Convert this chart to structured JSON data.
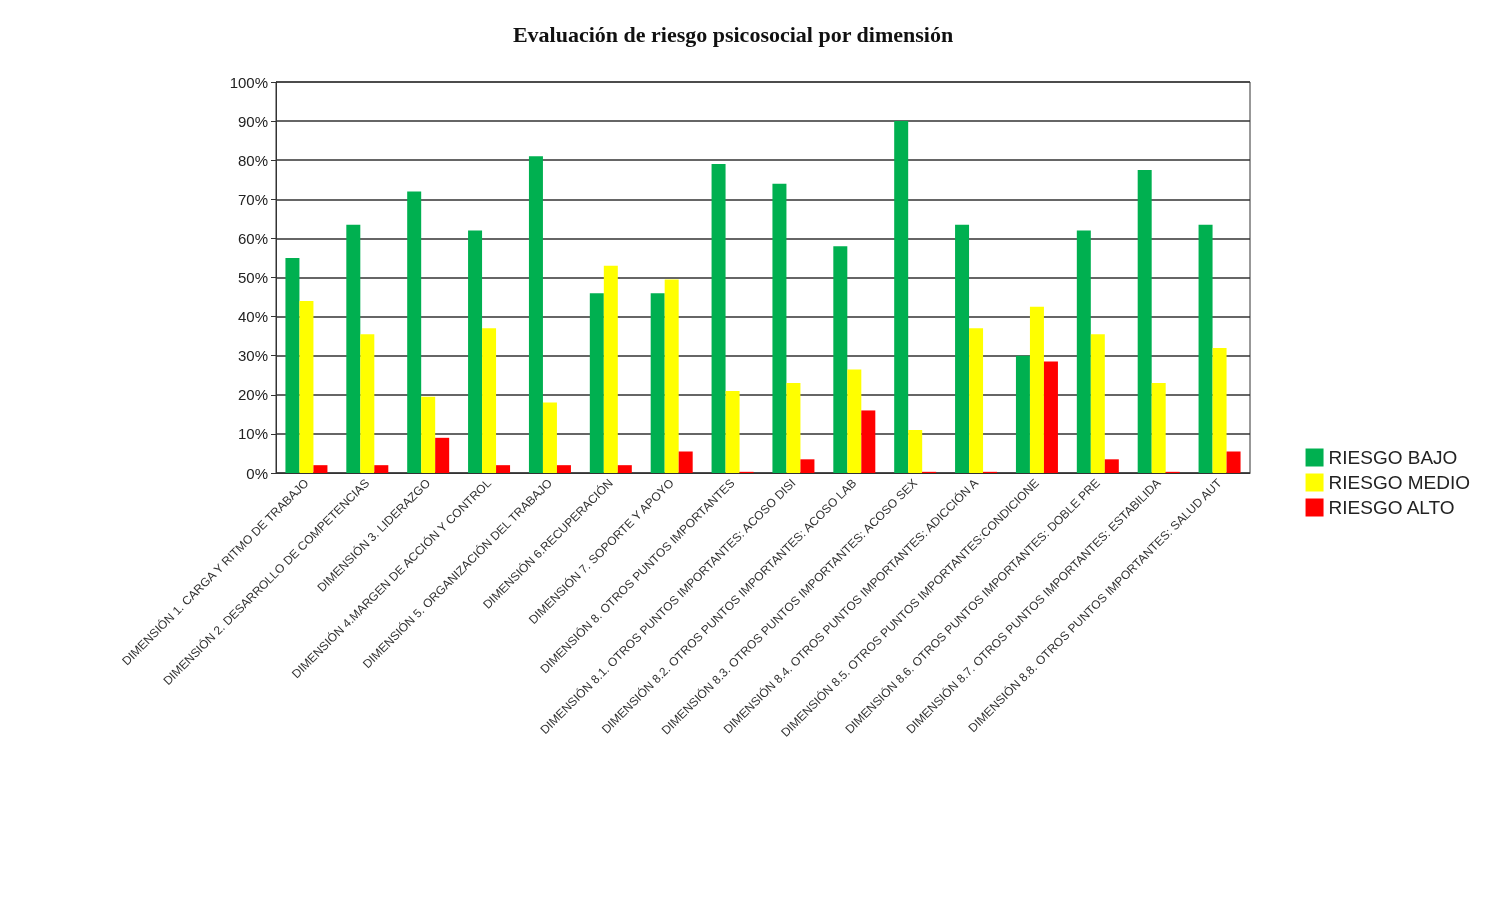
{
  "chart_data": {
    "type": "bar",
    "title": "Evaluación de riesgo psicosocial por dimensión",
    "categories": [
      "DIMENSIÓN 1. CARGA Y RITMO DE TRABAJO",
      "DIMENSIÓN 2. DESARROLLO DE COMPETENCIAS",
      "DIMENSIÓN 3. LIDERAZGO",
      "DIMENSIÓN 4.MARGEN DE ACCIÓN Y CONTROL",
      "DIMENSIÓN 5. ORGANIZACIÓN DEL TRABAJO",
      "DIMENSIÓN 6.RECUPERACIÓN",
      "DIMENSIÓN 7. SOPORTE Y APOYO",
      "DIMENSIÓN 8. OTROS PUNTOS IMPORTANTES",
      "DIMENSIÓN 8.1. OTROS PUNTOS IMPORTANTES: ACOSO DISI",
      "DIMENSIÓN 8.2. OTROS PUNTOS IMPORTANTES: ACOSO LAB",
      "DIMENSIÓN 8.3. OTROS PUNTOS IMPORTANTES: ACOSO SEX",
      "DIMENSIÓN 8.4. OTROS PUNTOS IMPORTANTES: ADICCIÓN A",
      "DIMENSIÓN 8.5. OTROS PUNTOS IMPORTANTES:CONDICIONE",
      "DIMENSIÓN 8.6. OTROS PUNTOS IMPORTANTES: DOBLE PRE",
      "DIMENSIÓN 8.7. OTROS PUNTOS IMPORTANTES: ESTABILIDA",
      "DIMENSIÓN 8.8. OTROS PUNTOS IMPORTANTES: SALUD AUT"
    ],
    "series": [
      {
        "name": "RIESGO BAJO",
        "color": "#00b050",
        "values": [
          55,
          63.5,
          72,
          62,
          81,
          46,
          46,
          79,
          74,
          58,
          90,
          63.5,
          30,
          62,
          77.5,
          63.5
        ]
      },
      {
        "name": "RIESGO MEDIO",
        "color": "#ffff00",
        "values": [
          44,
          35.5,
          19.5,
          37,
          18,
          53,
          49.5,
          21,
          23,
          26.5,
          11,
          37,
          42.5,
          35.5,
          23,
          32
        ]
      },
      {
        "name": "RIESGO ALTO",
        "color": "#ff0000",
        "values": [
          2,
          2,
          9,
          2,
          2,
          2,
          5.5,
          0.3,
          3.5,
          16,
          0.3,
          0.3,
          28.5,
          3.5,
          0.3,
          5.5
        ]
      }
    ],
    "ylim": [
      0,
      100
    ],
    "yticks": [
      {
        "value": 0,
        "label": "0%"
      },
      {
        "value": 10,
        "label": "10%"
      },
      {
        "value": 20,
        "label": "20%"
      },
      {
        "value": 30,
        "label": "30%"
      },
      {
        "value": 40,
        "label": "40%"
      },
      {
        "value": 50,
        "label": "50%"
      },
      {
        "value": 60,
        "label": "60%"
      },
      {
        "value": 70,
        "label": "70%"
      },
      {
        "value": 80,
        "label": "80%"
      },
      {
        "value": 90,
        "label": "90%"
      },
      {
        "value": 100,
        "label": "100%"
      }
    ],
    "grid": "y",
    "legend": "right"
  }
}
